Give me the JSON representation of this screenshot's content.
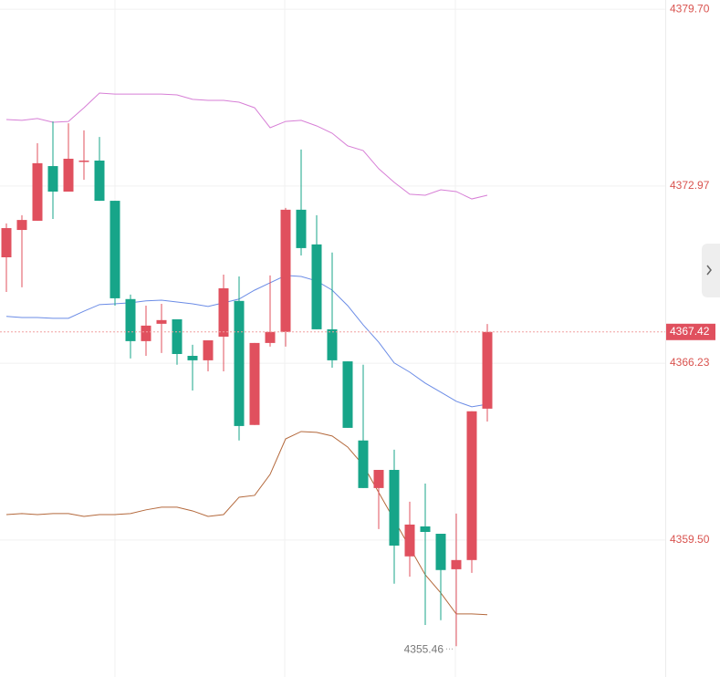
{
  "chart_data": {
    "type": "candlestick",
    "up_color": "#e0505e",
    "down_color": "#17a589",
    "open": [
      4370.26,
      4371.3,
      4371.65,
      4373.73,
      4372.76,
      4373.94,
      4373.94,
      4372.41,
      4368.67,
      4367.07,
      4367.73,
      4367.9,
      4366.51,
      4366.34,
      4367.24,
      4368.6,
      4363.88,
      4367.0,
      4367.42,
      4372.07,
      4370.75,
      4367.52,
      4366.3,
      4363.29,
      4361.48,
      4362.17,
      4358.88,
      4360.02,
      4359.74,
      4358.39,
      4358.74,
      4364.5
    ],
    "high": [
      4371.55,
      4371.86,
      4374.6,
      4375.43,
      4375.36,
      4375.09,
      4374.84,
      4372.41,
      4368.84,
      4368.42,
      4368.49,
      4367.9,
      4366.93,
      4367.1,
      4369.6,
      4369.53,
      4367.0,
      4369.57,
      4372.14,
      4374.36,
      4371.86,
      4370.44,
      4366.3,
      4366.17,
      4362.17,
      4362.94,
      4360.96,
      4361.65,
      4359.74,
      4360.51,
      4364.4,
      4367.72
    ],
    "low": [
      4368.94,
      4369.12,
      4371.65,
      4371.72,
      4372.76,
      4373.21,
      4372.41,
      4368.42,
      4366.41,
      4366.51,
      4366.62,
      4366.17,
      4365.19,
      4365.92,
      4365.92,
      4363.29,
      4363.88,
      4366.86,
      4366.86,
      4370.33,
      4367.52,
      4366.06,
      4363.77,
      4361.48,
      4359.92,
      4357.84,
      4358.11,
      4356.27,
      4356.45,
      4355.46,
      4358.25,
      4364.01
    ],
    "close": [
      4371.37,
      4371.68,
      4373.84,
      4372.76,
      4374.01,
      4373.94,
      4372.41,
      4368.7,
      4367.07,
      4367.66,
      4367.87,
      4366.58,
      4366.34,
      4367.1,
      4369.08,
      4363.84,
      4367.0,
      4367.42,
      4372.07,
      4370.61,
      4367.52,
      4366.34,
      4363.77,
      4361.48,
      4362.17,
      4359.29,
      4360.09,
      4359.81,
      4358.36,
      4358.74,
      4364.4,
      4367.42
    ],
    "bands": [
      {
        "color": "#d77fd6",
        "values": [
          4375.5,
          4375.47,
          4375.54,
          4375.4,
          4375.43,
          4375.95,
          4376.51,
          4376.47,
          4376.47,
          4376.47,
          4376.47,
          4376.44,
          4376.27,
          4376.23,
          4376.23,
          4376.16,
          4375.95,
          4375.19,
          4375.43,
          4375.47,
          4375.26,
          4374.98,
          4374.5,
          4374.32,
          4373.63,
          4373.11,
          4372.66,
          4372.62,
          4372.83,
          4372.76,
          4372.48,
          4372.62
        ]
      },
      {
        "color": "#6b8ce6",
        "values": [
          4368.01,
          4367.97,
          4367.97,
          4367.94,
          4367.94,
          4368.21,
          4368.46,
          4368.49,
          4368.53,
          4368.6,
          4368.63,
          4368.56,
          4368.49,
          4368.39,
          4368.53,
          4368.67,
          4369.01,
          4369.29,
          4369.57,
          4369.53,
          4369.36,
          4369.01,
          4368.42,
          4367.69,
          4367.03,
          4366.24,
          4365.89,
          4365.47,
          4365.13,
          4364.78,
          4364.57,
          4364.67
        ]
      },
      {
        "color": "#b4693c",
        "values": [
          4360.47,
          4360.51,
          4360.47,
          4360.51,
          4360.51,
          4360.4,
          4360.47,
          4360.47,
          4360.51,
          4360.65,
          4360.75,
          4360.75,
          4360.61,
          4360.4,
          4360.47,
          4361.13,
          4361.2,
          4362.0,
          4363.35,
          4363.63,
          4363.6,
          4363.46,
          4363.04,
          4362.35,
          4361.31,
          4360.27,
          4359.22,
          4358.18,
          4357.49,
          4356.69,
          4356.69,
          4356.66
        ]
      }
    ],
    "last_price": 4367.42,
    "min_label": 4355.46,
    "ylim": [
      4354.29,
      4380.05
    ],
    "yticks": [
      {
        "value": 4359.5,
        "label": "4359.50"
      },
      {
        "value": 4366.23,
        "label": "4366.23"
      },
      {
        "value": 4372.97,
        "label": "4372.97"
      },
      {
        "value": 4379.7,
        "label": "4379.70"
      }
    ],
    "grid": true
  }
}
